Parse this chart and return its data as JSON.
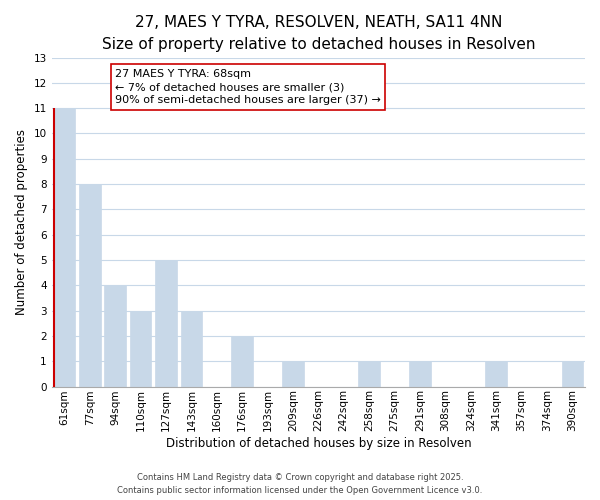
{
  "title": "27, MAES Y TYRA, RESOLVEN, NEATH, SA11 4NN",
  "subtitle": "Size of property relative to detached houses in Resolven",
  "xlabel": "Distribution of detached houses by size in Resolven",
  "ylabel": "Number of detached properties",
  "categories": [
    "61sqm",
    "77sqm",
    "94sqm",
    "110sqm",
    "127sqm",
    "143sqm",
    "160sqm",
    "176sqm",
    "193sqm",
    "209sqm",
    "226sqm",
    "242sqm",
    "258sqm",
    "275sqm",
    "291sqm",
    "308sqm",
    "324sqm",
    "341sqm",
    "357sqm",
    "374sqm",
    "390sqm"
  ],
  "values": [
    11,
    8,
    4,
    3,
    5,
    3,
    0,
    2,
    0,
    1,
    0,
    0,
    1,
    0,
    1,
    0,
    0,
    1,
    0,
    0,
    1
  ],
  "bar_color": "#c8d8e8",
  "highlight_bar_index": 0,
  "red_line_color": "#cc0000",
  "ylim": [
    0,
    13
  ],
  "yticks": [
    0,
    1,
    2,
    3,
    4,
    5,
    6,
    7,
    8,
    9,
    10,
    11,
    12,
    13
  ],
  "annotation_title": "27 MAES Y TYRA: 68sqm",
  "annotation_line1": "← 7% of detached houses are smaller (3)",
  "annotation_line2": "90% of semi-detached houses are larger (37) →",
  "annotation_box_edge_color": "#cc0000",
  "grid_color": "#c8d8e8",
  "background_color": "#ffffff",
  "footer_line1": "Contains HM Land Registry data © Crown copyright and database right 2025.",
  "footer_line2": "Contains public sector information licensed under the Open Government Licence v3.0.",
  "title_fontsize": 11,
  "subtitle_fontsize": 9,
  "xlabel_fontsize": 8.5,
  "ylabel_fontsize": 8.5,
  "tick_fontsize": 7.5,
  "annotation_fontsize": 8,
  "footer_fontsize": 6
}
